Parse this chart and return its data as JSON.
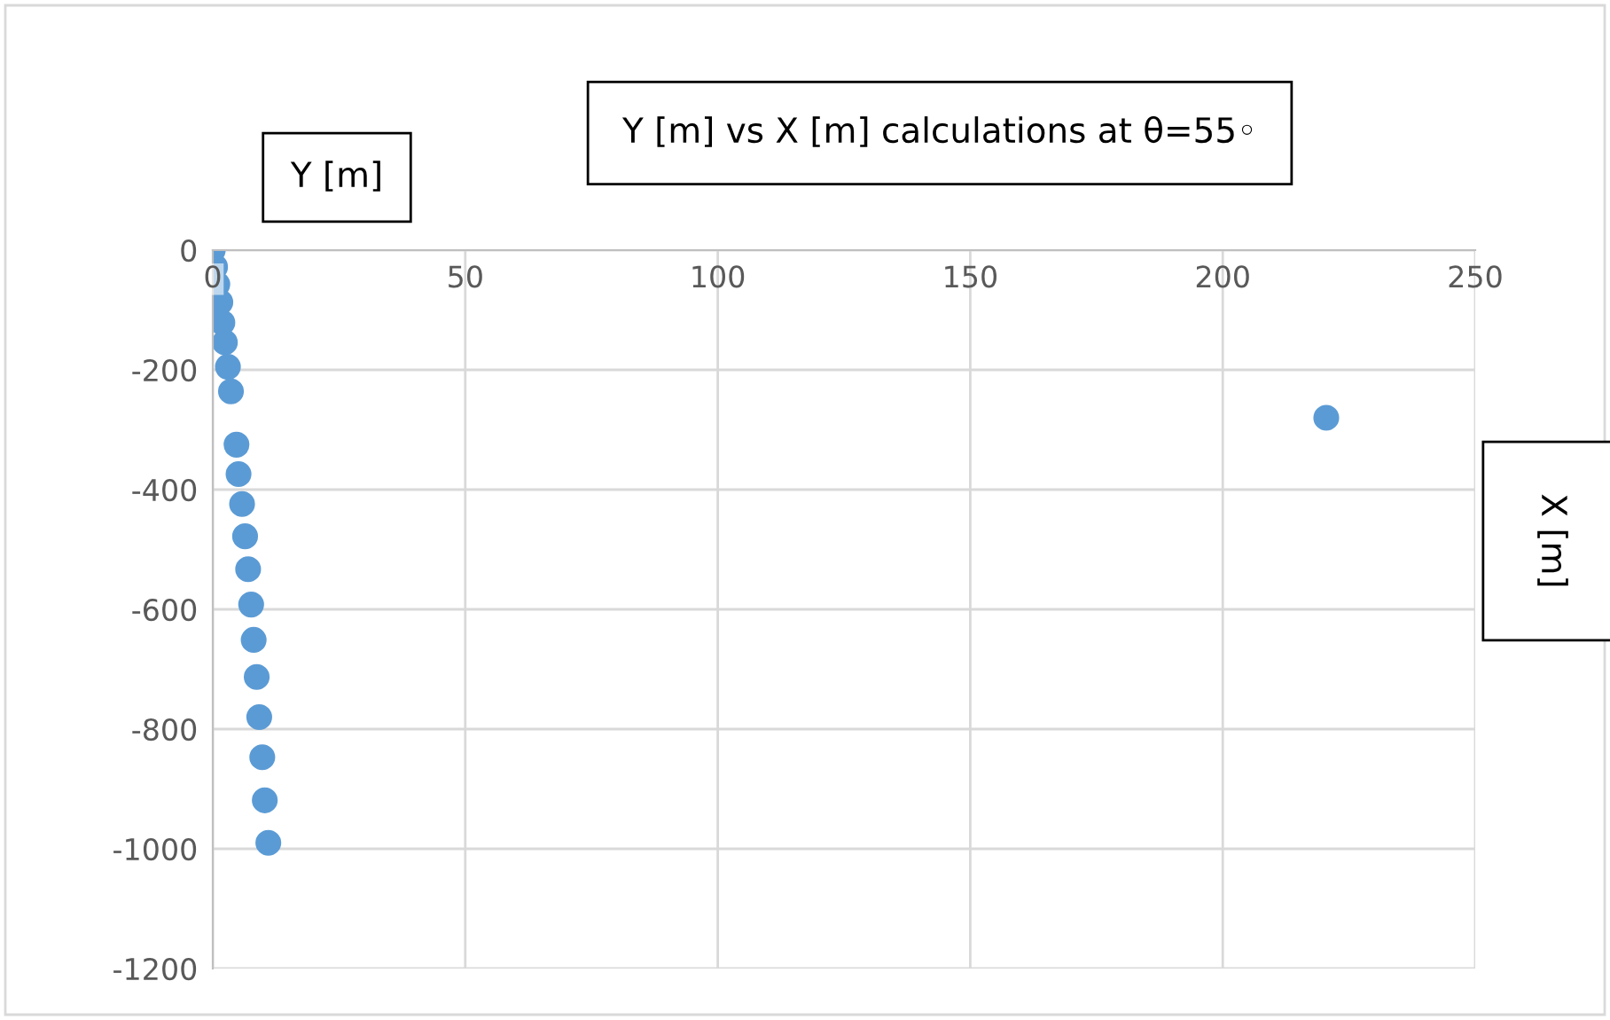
{
  "chart_data": {
    "type": "scatter",
    "title": "Y [m] vs X [m] calculations at θ=55◦",
    "annotations": [
      "X [m]"
    ],
    "ylabel": "Y [m]",
    "x": [
      0,
      0.45,
      0.9,
      1.5,
      1.9,
      2.4,
      3.0,
      3.6,
      4.7,
      5.1,
      5.8,
      6.4,
      7.0,
      7.6,
      8.1,
      8.7,
      9.2,
      9.8,
      10.3,
      11.0,
      220.5
    ],
    "series": [
      {
        "color": "#5b9bd5",
        "values": [
          0,
          -28,
          -57,
          -87,
          -121,
          -154,
          -195,
          -236,
          -325,
          -374,
          -424,
          -478,
          -533,
          -592,
          -651,
          -713,
          -780,
          -847,
          -919,
          -990,
          -280
        ]
      }
    ],
    "xlim": [
      0,
      250
    ],
    "xticks": [
      0,
      50,
      100,
      150,
      200,
      250
    ],
    "ylim": [
      -1200,
      0
    ],
    "yticks": [
      -1200,
      -1000,
      -800,
      -600,
      -400,
      -200,
      0
    ],
    "grid": true,
    "marker": "circle"
  }
}
